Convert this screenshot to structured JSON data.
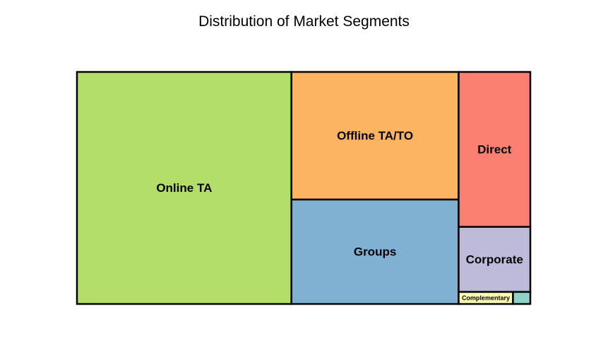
{
  "chart_data": {
    "type": "treemap",
    "title": "Distribution of Market Segments",
    "segments": [
      {
        "label": "Online TA",
        "value": 56477,
        "color": "#b3de69"
      },
      {
        "label": "Offline TA/TO",
        "value": 24219,
        "color": "#fdb462"
      },
      {
        "label": "Groups",
        "value": 19811,
        "color": "#80b1d3"
      },
      {
        "label": "Direct",
        "value": 12606,
        "color": "#fb8072"
      },
      {
        "label": "Corporate",
        "value": 5295,
        "color": "#bebada"
      },
      {
        "label": "Complementary",
        "value": 743,
        "color": "#ffffb3"
      },
      {
        "label": "",
        "value": 237,
        "color": "#8dd3c7"
      }
    ]
  }
}
